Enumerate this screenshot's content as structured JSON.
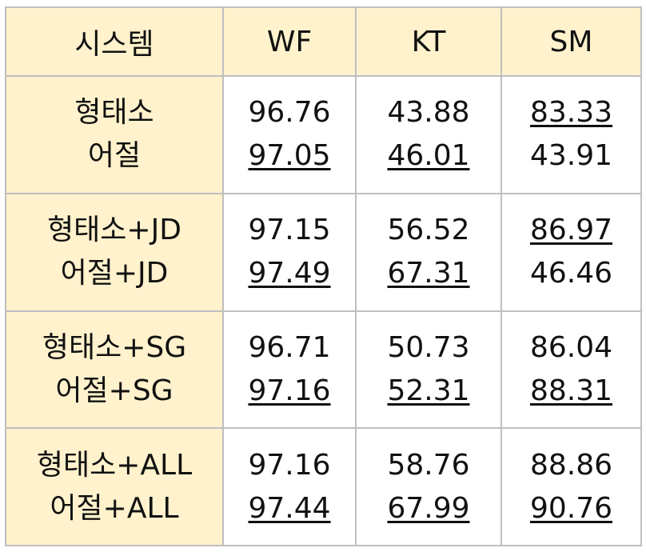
{
  "header": {
    "system": "시스템",
    "wf": "WF",
    "kt": "KT",
    "sm": "SM"
  },
  "rows": [
    {
      "label_line1": "형태소",
      "label_line2": "어절",
      "wf": [
        "96.76",
        "97.05"
      ],
      "kt": [
        "43.88",
        "46.01"
      ],
      "sm": [
        "83.33",
        "43.91"
      ],
      "underlined": {
        "wf": [
          false,
          true
        ],
        "kt": [
          false,
          true
        ],
        "sm": [
          true,
          false
        ]
      }
    },
    {
      "label_line1": "형태소+JD",
      "label_line2": "어절+JD",
      "wf": [
        "97.15",
        "97.49"
      ],
      "kt": [
        "56.52",
        "67.31"
      ],
      "sm": [
        "86.97",
        "46.46"
      ],
      "underlined": {
        "wf": [
          false,
          true
        ],
        "kt": [
          false,
          true
        ],
        "sm": [
          true,
          false
        ]
      }
    },
    {
      "label_line1": "형태소+SG",
      "label_line2": "어절+SG",
      "wf": [
        "96.71",
        "97.16"
      ],
      "kt": [
        "50.73",
        "52.31"
      ],
      "sm": [
        "86.04",
        "88.31"
      ],
      "underlined": {
        "wf": [
          false,
          true
        ],
        "kt": [
          false,
          true
        ],
        "sm": [
          false,
          true
        ]
      }
    },
    {
      "label_line1": "형태소+ALL",
      "label_line2": "어절+ALL",
      "wf": [
        "97.16",
        "97.44"
      ],
      "kt": [
        "58.76",
        "67.99"
      ],
      "sm": [
        "88.86",
        "90.76"
      ],
      "underlined": {
        "wf": [
          false,
          true
        ],
        "kt": [
          false,
          true
        ],
        "sm": [
          false,
          true
        ]
      }
    }
  ],
  "colors": {
    "header_bg": "#fff2cc",
    "border": "#bfbfbf",
    "text": "#111111"
  }
}
